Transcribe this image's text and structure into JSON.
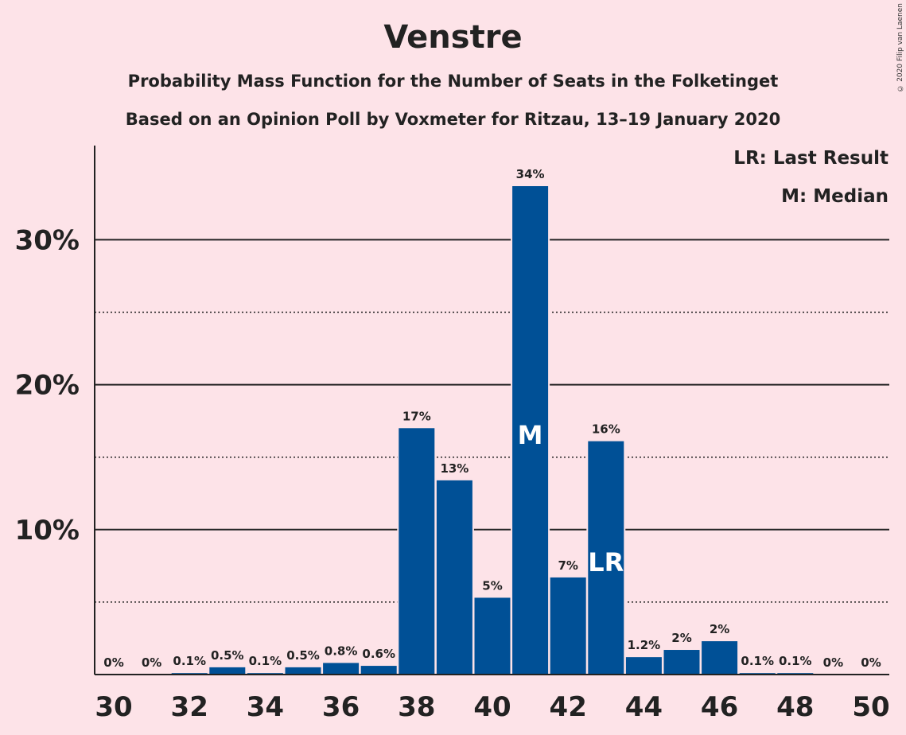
{
  "chart_data": {
    "type": "bar",
    "title": "Venstre",
    "subtitle": "Probability Mass Function for the Number of Seats in the Folketinget",
    "subtitle2": "Based on an Opinion Poll by Voxmeter for Ritzau, 13–19 January 2020",
    "copyright": "© 2020 Filip van Laenen",
    "legend": {
      "lr": "LR: Last Result",
      "m": "M: Median",
      "placement": "top-right"
    },
    "bar_color": "#005096",
    "background": "#fde3e8",
    "ylim": [
      0,
      36.5
    ],
    "y_major_ticks": [
      10,
      20,
      30
    ],
    "y_major_labels": [
      "10%",
      "20%",
      "30%"
    ],
    "y_minor_ticks": [
      5,
      15,
      25
    ],
    "x_tick_labels": [
      "30",
      "32",
      "34",
      "36",
      "38",
      "40",
      "42",
      "44",
      "46",
      "48",
      "50"
    ],
    "x_tick_values": [
      30,
      32,
      34,
      36,
      38,
      40,
      42,
      44,
      46,
      48,
      50
    ],
    "categories": [
      30,
      31,
      32,
      33,
      34,
      35,
      36,
      37,
      38,
      39,
      40,
      41,
      42,
      43,
      44,
      45,
      46,
      47,
      48,
      49,
      50
    ],
    "values": [
      0,
      0,
      0.1,
      0.5,
      0.1,
      0.5,
      0.8,
      0.6,
      17,
      13.4,
      5.3,
      33.7,
      6.7,
      16.1,
      1.2,
      1.7,
      2.3,
      0.1,
      0.1,
      0,
      0
    ],
    "labels": [
      "0%",
      "0%",
      "0.1%",
      "0.5%",
      "0.1%",
      "0.5%",
      "0.8%",
      "0.6%",
      "17%",
      "13%",
      "5%",
      "34%",
      "7%",
      "16%",
      "1.2%",
      "2%",
      "2%",
      "0.1%",
      "0.1%",
      "0%",
      "0%"
    ],
    "median": {
      "seats": 41,
      "text": "M"
    },
    "last_result": {
      "seats": 43,
      "text": "LR"
    }
  }
}
